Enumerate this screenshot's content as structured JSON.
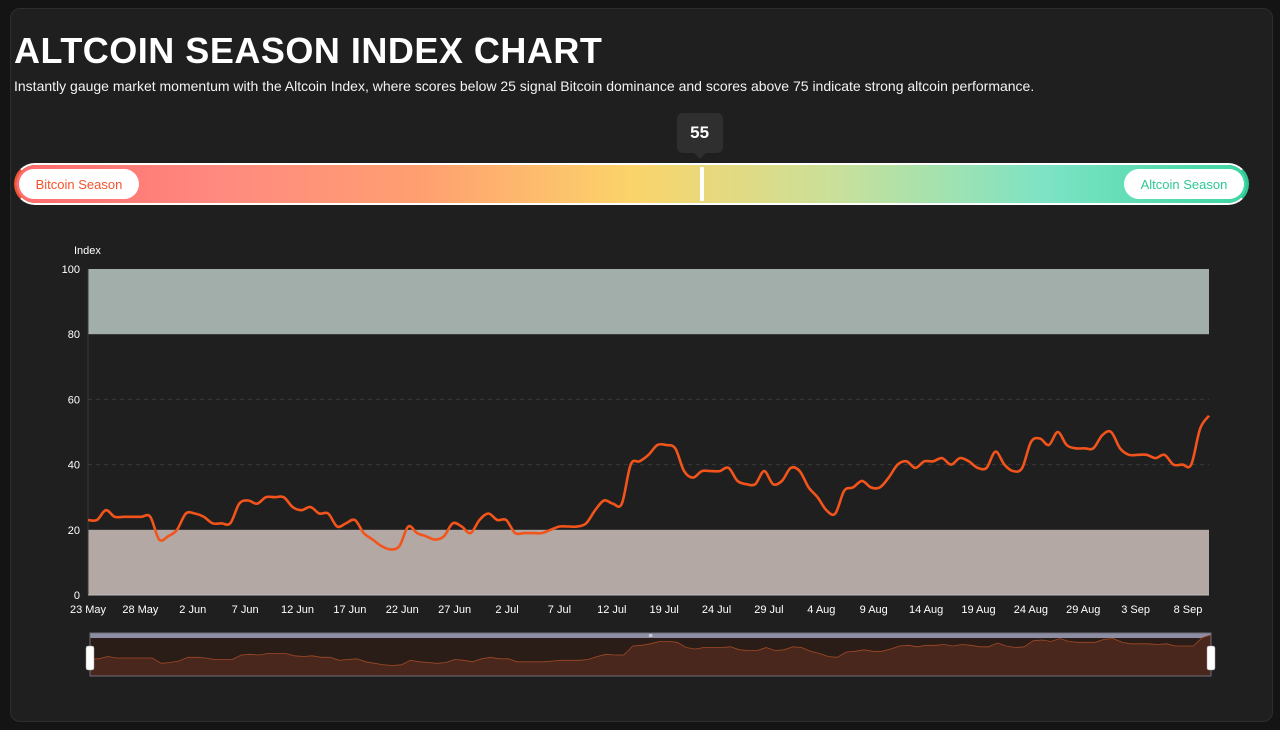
{
  "header": {
    "title": "ALTCOIN SEASON INDEX CHART",
    "subtitle": "Instantly gauge market momentum with the Altcoin Index, where scores below 25 signal Bitcoin dominance and scores above 75 indicate strong altcoin performance."
  },
  "gauge": {
    "value": 55,
    "min": 0,
    "max": 100,
    "left_label": "Bitcoin Season",
    "right_label": "Altcoin Season",
    "colors": {
      "bitcoin": "#f2542d",
      "altcoin": "#2fc891",
      "gradient": [
        "#ff6b6b",
        "#ff8a80",
        "#ffa070",
        "#fbd46a",
        "#c9e09a",
        "#7ee3c4",
        "#3dd6a4"
      ]
    }
  },
  "chart_data": {
    "type": "line",
    "ylabel": "Index",
    "ylim": [
      0,
      100
    ],
    "yticks": [
      0,
      20,
      40,
      60,
      80,
      100
    ],
    "x_start": "2025-05-23",
    "x_end": "2025-09-11",
    "xticks": [
      "23 May",
      "28 May",
      "2 Jun",
      "7 Jun",
      "12 Jun",
      "17 Jun",
      "22 Jun",
      "27 Jun",
      "2 Jul",
      "7 Jul",
      "12 Jul",
      "19 Jul",
      "24 Jul",
      "29 Jul",
      "4 Aug",
      "9 Aug",
      "14 Aug",
      "19 Aug",
      "24 Aug",
      "29 Aug",
      "3 Sep",
      "8 Sep"
    ],
    "bands": [
      {
        "from": 80,
        "to": 100,
        "color": "#a2aeaa"
      },
      {
        "from": 0,
        "to": 20,
        "color": "#b3a8a3"
      }
    ],
    "gridlines": [
      40,
      60
    ],
    "line_color": "#f2541b",
    "series": [
      {
        "points": [
          [
            "2025-05-23",
            23
          ],
          [
            "2025-05-24",
            23
          ],
          [
            "2025-05-25",
            26
          ],
          [
            "2025-05-26",
            24
          ],
          [
            "2025-05-27",
            24
          ],
          [
            "2025-05-28",
            24
          ],
          [
            "2025-05-29",
            24
          ],
          [
            "2025-05-30",
            24
          ],
          [
            "2025-05-31",
            17
          ],
          [
            "2025-06-01",
            18
          ],
          [
            "2025-06-02",
            20
          ],
          [
            "2025-06-03",
            25
          ],
          [
            "2025-06-04",
            25
          ],
          [
            "2025-06-05",
            24
          ],
          [
            "2025-06-06",
            22
          ],
          [
            "2025-06-07",
            22
          ],
          [
            "2025-06-08",
            22
          ],
          [
            "2025-06-09",
            28
          ],
          [
            "2025-06-10",
            29
          ],
          [
            "2025-06-11",
            28
          ],
          [
            "2025-06-12",
            30
          ],
          [
            "2025-06-13",
            30
          ],
          [
            "2025-06-14",
            30
          ],
          [
            "2025-06-15",
            27
          ],
          [
            "2025-06-16",
            26
          ],
          [
            "2025-06-17",
            27
          ],
          [
            "2025-06-18",
            25
          ],
          [
            "2025-06-19",
            25
          ],
          [
            "2025-06-20",
            21
          ],
          [
            "2025-06-21",
            22
          ],
          [
            "2025-06-22",
            23
          ],
          [
            "2025-06-23",
            19
          ],
          [
            "2025-06-24",
            17
          ],
          [
            "2025-06-25",
            15
          ],
          [
            "2025-06-26",
            14
          ],
          [
            "2025-06-27",
            15
          ],
          [
            "2025-06-28",
            21
          ],
          [
            "2025-06-29",
            19
          ],
          [
            "2025-06-30",
            18
          ],
          [
            "2025-07-01",
            17
          ],
          [
            "2025-07-02",
            18
          ],
          [
            "2025-07-03",
            22
          ],
          [
            "2025-07-04",
            21
          ],
          [
            "2025-07-05",
            19
          ],
          [
            "2025-07-06",
            23
          ],
          [
            "2025-07-07",
            25
          ],
          [
            "2025-07-08",
            23
          ],
          [
            "2025-07-09",
            23
          ],
          [
            "2025-07-10",
            19
          ],
          [
            "2025-07-11",
            19
          ],
          [
            "2025-07-12",
            19
          ],
          [
            "2025-07-13",
            19
          ],
          [
            "2025-07-14",
            20
          ],
          [
            "2025-07-15",
            21
          ],
          [
            "2025-07-16",
            21
          ],
          [
            "2025-07-17",
            21
          ],
          [
            "2025-07-18",
            22
          ],
          [
            "2025-07-19",
            26
          ],
          [
            "2025-07-20",
            29
          ],
          [
            "2025-07-21",
            28
          ],
          [
            "2025-07-22",
            28
          ],
          [
            "2025-07-23",
            40
          ],
          [
            "2025-07-24",
            41
          ],
          [
            "2025-07-25",
            43
          ],
          [
            "2025-07-26",
            46
          ],
          [
            "2025-07-27",
            46
          ],
          [
            "2025-07-28",
            45
          ],
          [
            "2025-07-29",
            38
          ],
          [
            "2025-07-30",
            36
          ],
          [
            "2025-07-31",
            38
          ],
          [
            "2025-08-01",
            38
          ],
          [
            "2025-08-02",
            38
          ],
          [
            "2025-08-03",
            39
          ],
          [
            "2025-08-04",
            35
          ],
          [
            "2025-08-05",
            34
          ],
          [
            "2025-08-06",
            34
          ],
          [
            "2025-08-07",
            38
          ],
          [
            "2025-08-08",
            34
          ],
          [
            "2025-08-09",
            35
          ],
          [
            "2025-08-10",
            39
          ],
          [
            "2025-08-11",
            38
          ],
          [
            "2025-08-12",
            33
          ],
          [
            "2025-08-13",
            30
          ],
          [
            "2025-08-14",
            26
          ],
          [
            "2025-08-15",
            25
          ],
          [
            "2025-08-16",
            32
          ],
          [
            "2025-08-17",
            33
          ],
          [
            "2025-08-18",
            35
          ],
          [
            "2025-08-19",
            33
          ],
          [
            "2025-08-20",
            33
          ],
          [
            "2025-08-21",
            36
          ],
          [
            "2025-08-22",
            40
          ],
          [
            "2025-08-23",
            41
          ],
          [
            "2025-08-24",
            39
          ],
          [
            "2025-08-25",
            41
          ],
          [
            "2025-08-26",
            41
          ],
          [
            "2025-08-27",
            42
          ],
          [
            "2025-08-28",
            40
          ],
          [
            "2025-08-29",
            42
          ],
          [
            "2025-08-30",
            41
          ],
          [
            "2025-08-31",
            39
          ],
          [
            "2025-09-01",
            39
          ],
          [
            "2025-09-02",
            44
          ],
          [
            "2025-09-03",
            40
          ],
          [
            "2025-09-04",
            38
          ],
          [
            "2025-09-05",
            39
          ],
          [
            "2025-09-06",
            47
          ],
          [
            "2025-09-07",
            48
          ],
          [
            "2025-09-08",
            46
          ],
          [
            "2025-09-09",
            50
          ],
          [
            "2025-09-10",
            46
          ],
          [
            "2025-09-11",
            45
          ],
          [
            "2025-09-12",
            45
          ],
          [
            "2025-09-13",
            45
          ],
          [
            "2025-09-14",
            49
          ],
          [
            "2025-09-15",
            50
          ],
          [
            "2025-09-16",
            45
          ],
          [
            "2025-09-17",
            43
          ],
          [
            "2025-09-18",
            43
          ],
          [
            "2025-09-19",
            43
          ],
          [
            "2025-09-20",
            42
          ],
          [
            "2025-09-21",
            43
          ],
          [
            "2025-09-22",
            40
          ],
          [
            "2025-09-23",
            40
          ],
          [
            "2025-09-24",
            40
          ],
          [
            "2025-09-25",
            51
          ],
          [
            "2025-09-26",
            55
          ]
        ]
      }
    ],
    "slider": {
      "range_start": 0,
      "range_end": 1,
      "fill_color": "#4a271d",
      "track_color": "#8d8ea3",
      "handle_label": "≡"
    }
  }
}
